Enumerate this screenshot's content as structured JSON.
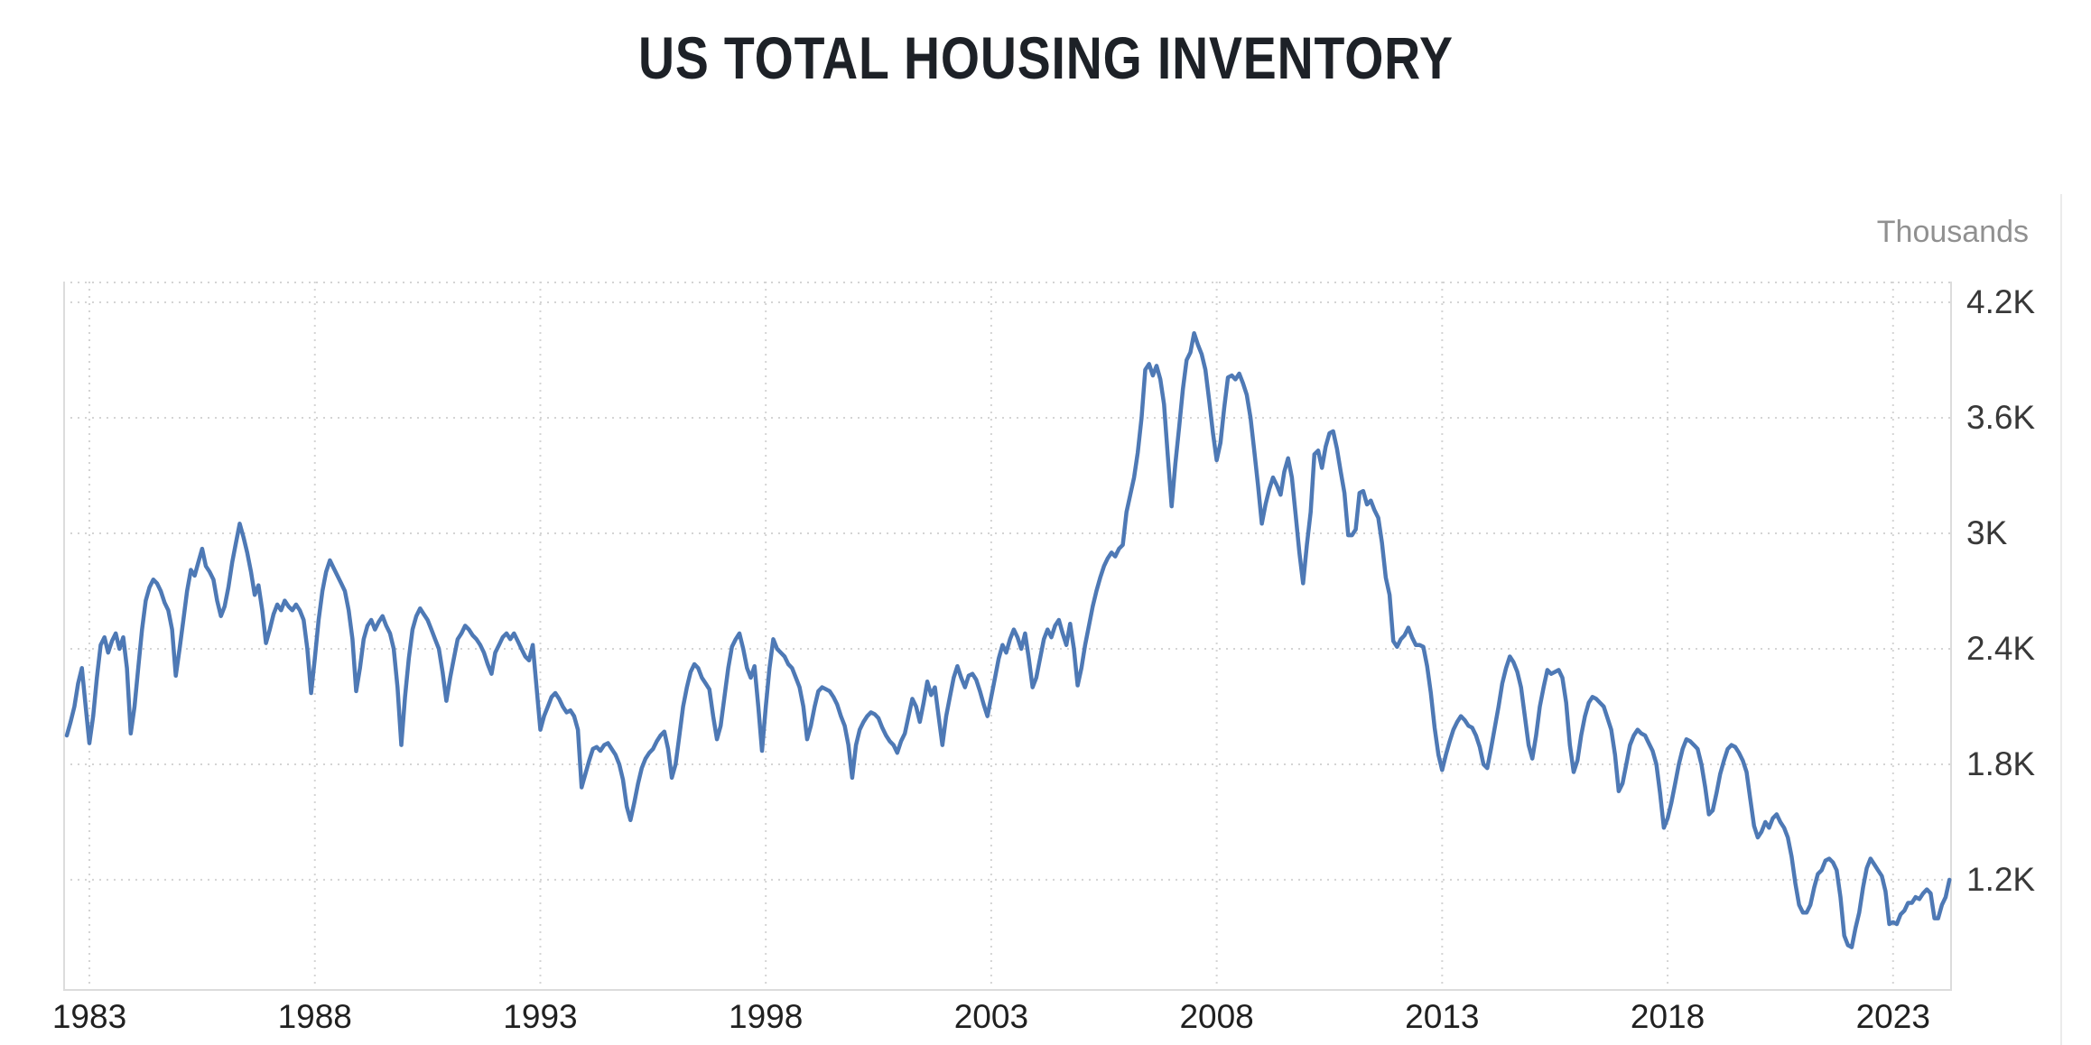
{
  "page": {
    "background": "#ffffff"
  },
  "chart_data": {
    "type": "line",
    "title": "US TOTAL HOUSING INVENTORY",
    "unit_label": "Thousands",
    "series_color": "#4e79b5",
    "grid": true,
    "legend_position": "none",
    "colors": {
      "title": "#1d2127",
      "grid_dotted": "#d4d4d4",
      "plot_border": "#dcdcdc",
      "y_tick_text": "#383838",
      "x_tick_text": "#202020",
      "unit_text": "#909090"
    },
    "y_axis": {
      "side": "right",
      "range": [
        623,
        4308
      ],
      "ticks": [
        {
          "value": 4200,
          "label": "4.2K"
        },
        {
          "value": 3600,
          "label": "3.6K"
        },
        {
          "value": 3000,
          "label": "3K"
        },
        {
          "value": 2400,
          "label": "2.4K"
        },
        {
          "value": 1800,
          "label": "1.8K"
        },
        {
          "value": 1200,
          "label": "1.2K"
        }
      ]
    },
    "x_axis": {
      "range": [
        1982.419,
        2024.306
      ],
      "ticks": [
        {
          "value": 1983,
          "label": "1983"
        },
        {
          "value": 1988,
          "label": "1988"
        },
        {
          "value": 1993,
          "label": "1993"
        },
        {
          "value": 1998,
          "label": "1998"
        },
        {
          "value": 2003,
          "label": "2003"
        },
        {
          "value": 2008,
          "label": "2008"
        },
        {
          "value": 2013,
          "label": "2013"
        },
        {
          "value": 2018,
          "label": "2018"
        },
        {
          "value": 2023,
          "label": "2023"
        }
      ]
    },
    "series": [
      {
        "name": "US Total Housing Inventory",
        "unit": "thousands",
        "frequency": "monthly",
        "start_year": 1982,
        "start_month": 7,
        "values": [
          1950,
          2020,
          2100,
          2220,
          2300,
          2100,
          1910,
          2050,
          2250,
          2420,
          2460,
          2380,
          2440,
          2480,
          2400,
          2460,
          2300,
          1960,
          2100,
          2300,
          2500,
          2650,
          2720,
          2760,
          2740,
          2700,
          2640,
          2600,
          2500,
          2260,
          2400,
          2550,
          2700,
          2810,
          2780,
          2850,
          2920,
          2830,
          2800,
          2760,
          2650,
          2570,
          2620,
          2720,
          2850,
          2950,
          3050,
          2980,
          2900,
          2800,
          2680,
          2730,
          2600,
          2430,
          2500,
          2580,
          2630,
          2600,
          2650,
          2620,
          2600,
          2630,
          2600,
          2550,
          2400,
          2170,
          2350,
          2550,
          2700,
          2800,
          2860,
          2820,
          2780,
          2740,
          2700,
          2600,
          2450,
          2180,
          2300,
          2450,
          2520,
          2550,
          2500,
          2540,
          2570,
          2520,
          2480,
          2400,
          2200,
          1900,
          2150,
          2350,
          2500,
          2570,
          2610,
          2580,
          2550,
          2500,
          2450,
          2400,
          2280,
          2130,
          2250,
          2350,
          2450,
          2480,
          2520,
          2500,
          2470,
          2450,
          2420,
          2380,
          2320,
          2270,
          2380,
          2420,
          2460,
          2480,
          2450,
          2480,
          2440,
          2400,
          2360,
          2340,
          2420,
          2200,
          1980,
          2050,
          2100,
          2150,
          2170,
          2140,
          2100,
          2070,
          2080,
          2050,
          1980,
          1680,
          1750,
          1820,
          1880,
          1890,
          1870,
          1900,
          1910,
          1880,
          1850,
          1800,
          1720,
          1580,
          1510,
          1600,
          1700,
          1780,
          1830,
          1860,
          1880,
          1920,
          1950,
          1970,
          1880,
          1730,
          1800,
          1950,
          2100,
          2200,
          2280,
          2320,
          2300,
          2250,
          2220,
          2190,
          2050,
          1930,
          2000,
          2150,
          2300,
          2410,
          2450,
          2480,
          2400,
          2300,
          2250,
          2310,
          2100,
          1870,
          2100,
          2300,
          2450,
          2400,
          2380,
          2360,
          2320,
          2300,
          2250,
          2200,
          2100,
          1930,
          2000,
          2100,
          2180,
          2200,
          2190,
          2180,
          2150,
          2110,
          2050,
          2000,
          1900,
          1730,
          1900,
          1980,
          2020,
          2050,
          2070,
          2060,
          2040,
          1990,
          1950,
          1920,
          1900,
          1860,
          1920,
          1960,
          2050,
          2140,
          2100,
          2020,
          2120,
          2230,
          2160,
          2200,
          2050,
          1900,
          2050,
          2150,
          2250,
          2310,
          2250,
          2200,
          2260,
          2270,
          2240,
          2180,
          2110,
          2050,
          2150,
          2250,
          2350,
          2420,
          2380,
          2450,
          2500,
          2460,
          2400,
          2480,
          2350,
          2200,
          2250,
          2350,
          2450,
          2500,
          2460,
          2520,
          2550,
          2480,
          2420,
          2530,
          2400,
          2210,
          2300,
          2420,
          2520,
          2620,
          2700,
          2770,
          2830,
          2870,
          2900,
          2880,
          2920,
          2940,
          3110,
          3200,
          3290,
          3420,
          3600,
          3850,
          3880,
          3820,
          3870,
          3800,
          3670,
          3400,
          3140,
          3360,
          3550,
          3750,
          3900,
          3940,
          4040,
          3980,
          3930,
          3850,
          3690,
          3520,
          3380,
          3470,
          3650,
          3810,
          3820,
          3800,
          3830,
          3780,
          3720,
          3600,
          3430,
          3250,
          3050,
          3150,
          3230,
          3290,
          3250,
          3200,
          3320,
          3390,
          3290,
          3100,
          2900,
          2740,
          2940,
          3110,
          3410,
          3430,
          3340,
          3450,
          3520,
          3530,
          3440,
          3320,
          3210,
          2990,
          2990,
          3020,
          3210,
          3220,
          3150,
          3170,
          3120,
          3080,
          2950,
          2770,
          2680,
          2440,
          2410,
          2450,
          2470,
          2510,
          2460,
          2420,
          2420,
          2410,
          2310,
          2170,
          1990,
          1850,
          1770,
          1850,
          1920,
          1980,
          2020,
          2050,
          2030,
          2000,
          1990,
          1950,
          1890,
          1800,
          1780,
          1880,
          1990,
          2100,
          2220,
          2300,
          2360,
          2330,
          2280,
          2200,
          2050,
          1900,
          1830,
          1950,
          2100,
          2200,
          2290,
          2270,
          2280,
          2290,
          2250,
          2120,
          1900,
          1760,
          1820,
          1950,
          2050,
          2120,
          2150,
          2140,
          2120,
          2100,
          2040,
          1980,
          1850,
          1660,
          1700,
          1800,
          1900,
          1950,
          1980,
          1960,
          1950,
          1910,
          1870,
          1800,
          1650,
          1470,
          1520,
          1600,
          1700,
          1800,
          1880,
          1930,
          1920,
          1900,
          1880,
          1800,
          1680,
          1540,
          1560,
          1650,
          1750,
          1820,
          1880,
          1900,
          1890,
          1860,
          1820,
          1760,
          1620,
          1480,
          1420,
          1450,
          1500,
          1470,
          1520,
          1540,
          1500,
          1470,
          1420,
          1320,
          1180,
          1070,
          1030,
          1030,
          1070,
          1160,
          1230,
          1250,
          1300,
          1310,
          1290,
          1250,
          1110,
          910,
          860,
          850,
          950,
          1030,
          1160,
          1260,
          1310,
          1280,
          1250,
          1220,
          1140,
          970,
          980,
          970,
          1020,
          1040,
          1080,
          1080,
          1110,
          1100,
          1130,
          1150,
          1130,
          1000,
          1000,
          1070,
          1110,
          1200
        ]
      }
    ]
  }
}
